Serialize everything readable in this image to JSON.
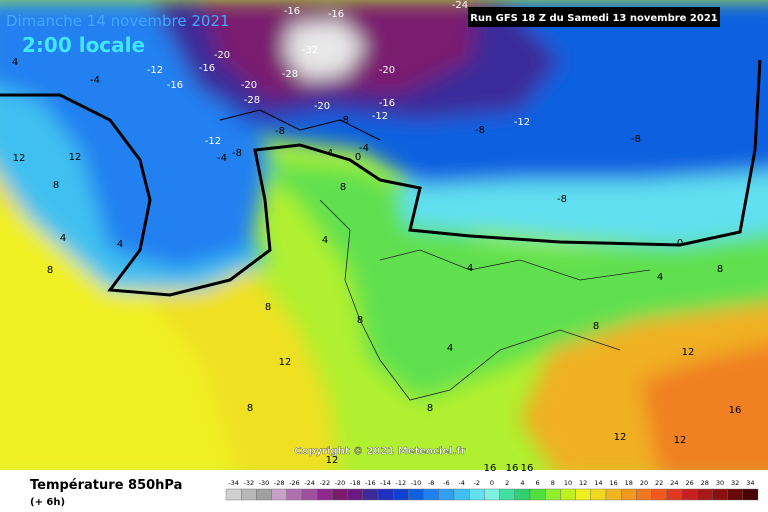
{
  "header": {
    "date": "Dimanche 14 novembre 2021",
    "time": "2:00 locale",
    "run": "Run GFS 18 Z du Samedi 13 novembre 2021"
  },
  "copyright": "Copyright © 2021 Meteociel.fr",
  "footer": {
    "title": "Température 850hPa",
    "step": "(+ 6h)"
  },
  "legend": {
    "values": [
      -34,
      -32,
      -30,
      -28,
      -26,
      -24,
      -22,
      -20,
      -18,
      -16,
      -14,
      -12,
      -10,
      -8,
      -6,
      -4,
      -2,
      0,
      2,
      4,
      6,
      8,
      10,
      12,
      14,
      16,
      18,
      20,
      22,
      24,
      26,
      28,
      30,
      32,
      34
    ],
    "colors": [
      "#d0d0d0",
      "#b8b8b8",
      "#a0a0a0",
      "#c8a0c8",
      "#b070b0",
      "#a050a0",
      "#902890",
      "#7a1a70",
      "#6a1a80",
      "#3a2a9a",
      "#2030c0",
      "#1040d0",
      "#1060e0",
      "#2080f0",
      "#30a0f0",
      "#40c0f0",
      "#60e0f0",
      "#80f0e0",
      "#40e0a0",
      "#30d070",
      "#50e040",
      "#90f030",
      "#c0f020",
      "#f0f020",
      "#f0d820",
      "#f0b820",
      "#f09820",
      "#f07820",
      "#f05820",
      "#e03820",
      "#c82020",
      "#a81818",
      "#881010",
      "#680808",
      "#480000"
    ]
  },
  "contour_labels": [
    -20,
    -16,
    -16,
    -20,
    -24,
    -12,
    -16,
    -16,
    -20,
    -28,
    -32,
    -28,
    -20,
    -16,
    -12,
    -8,
    -8,
    -12,
    -8,
    -4,
    -4,
    -12,
    -8,
    -8,
    -8,
    0,
    4,
    4,
    -4,
    8,
    4,
    4,
    8,
    8,
    4,
    8,
    12,
    12,
    12,
    16,
    16,
    16,
    16,
    8,
    4,
    4,
    0,
    4,
    8,
    8,
    12,
    12,
    12,
    12,
    8,
    8
  ]
}
